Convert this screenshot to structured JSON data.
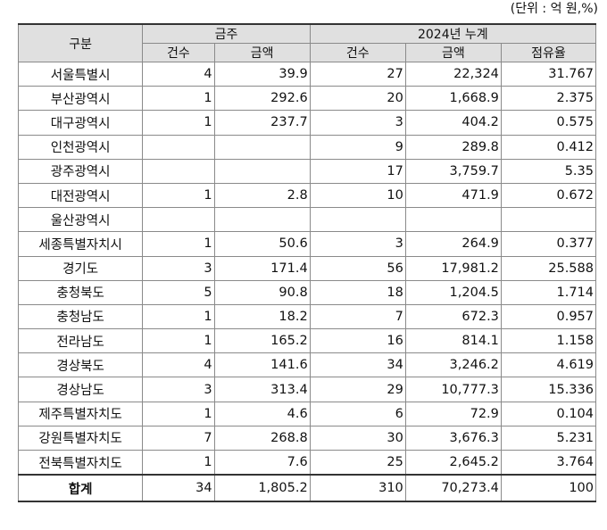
{
  "unit_note": "(단위 : 억 원,%)",
  "header": {
    "region": "구분",
    "week_group": "금주",
    "cum_group": "2024년 누계",
    "count": "건수",
    "amount": "금액",
    "cum_count": "건수",
    "cum_amount": "금액",
    "share": "점유율"
  },
  "rows": [
    {
      "region": "서울특별시",
      "count": "4",
      "amount": "39.9",
      "cum_count": "27",
      "cum_amount": "22,324",
      "share": "31.767"
    },
    {
      "region": "부산광역시",
      "count": "1",
      "amount": "292.6",
      "cum_count": "20",
      "cum_amount": "1,668.9",
      "share": "2.375"
    },
    {
      "region": "대구광역시",
      "count": "1",
      "amount": "237.7",
      "cum_count": "3",
      "cum_amount": "404.2",
      "share": "0.575"
    },
    {
      "region": "인천광역시",
      "count": "",
      "amount": "",
      "cum_count": "9",
      "cum_amount": "289.8",
      "share": "0.412"
    },
    {
      "region": "광주광역시",
      "count": "",
      "amount": "",
      "cum_count": "17",
      "cum_amount": "3,759.7",
      "share": "5.35"
    },
    {
      "region": "대전광역시",
      "count": "1",
      "amount": "2.8",
      "cum_count": "10",
      "cum_amount": "471.9",
      "share": "0.672"
    },
    {
      "region": "울산광역시",
      "count": "",
      "amount": "",
      "cum_count": "",
      "cum_amount": "",
      "share": ""
    },
    {
      "region": "세종특별자치시",
      "count": "1",
      "amount": "50.6",
      "cum_count": "3",
      "cum_amount": "264.9",
      "share": "0.377"
    },
    {
      "region": "경기도",
      "count": "3",
      "amount": "171.4",
      "cum_count": "56",
      "cum_amount": "17,981.2",
      "share": "25.588"
    },
    {
      "region": "충청북도",
      "count": "5",
      "amount": "90.8",
      "cum_count": "18",
      "cum_amount": "1,204.5",
      "share": "1.714"
    },
    {
      "region": "충청남도",
      "count": "1",
      "amount": "18.2",
      "cum_count": "7",
      "cum_amount": "672.3",
      "share": "0.957"
    },
    {
      "region": "전라남도",
      "count": "1",
      "amount": "165.2",
      "cum_count": "16",
      "cum_amount": "814.1",
      "share": "1.158"
    },
    {
      "region": "경상북도",
      "count": "4",
      "amount": "141.6",
      "cum_count": "34",
      "cum_amount": "3,246.2",
      "share": "4.619"
    },
    {
      "region": "경상남도",
      "count": "3",
      "amount": "313.4",
      "cum_count": "29",
      "cum_amount": "10,777.3",
      "share": "15.336"
    },
    {
      "region": "제주특별자치도",
      "count": "1",
      "amount": "4.6",
      "cum_count": "6",
      "cum_amount": "72.9",
      "share": "0.104"
    },
    {
      "region": "강원특별자치도",
      "count": "7",
      "amount": "268.8",
      "cum_count": "30",
      "cum_amount": "3,676.3",
      "share": "5.231"
    },
    {
      "region": "전북특별자치도",
      "count": "1",
      "amount": "7.6",
      "cum_count": "25",
      "cum_amount": "2,645.2",
      "share": "3.764"
    }
  ],
  "total": {
    "region": "합계",
    "count": "34",
    "amount": "1,805.2",
    "cum_count": "310",
    "cum_amount": "70,273.4",
    "share": "100"
  }
}
